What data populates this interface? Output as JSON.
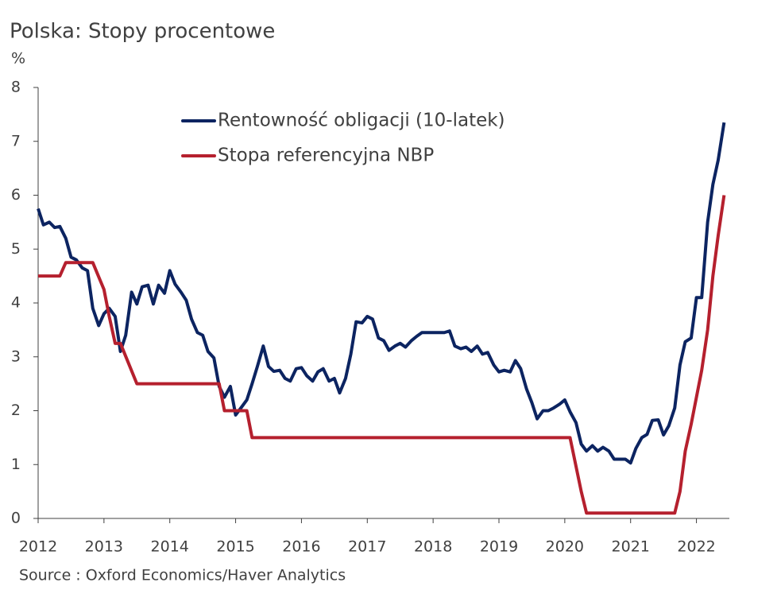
{
  "chart_data": {
    "type": "line",
    "title": "Polska: Stopy procentowe",
    "y_label": "%",
    "source": "Source : Oxford Economics/Haver Analytics",
    "xlim": [
      2012,
      2022.5
    ],
    "xticks": [
      2012,
      2013,
      2014,
      2015,
      2016,
      2017,
      2018,
      2019,
      2020,
      2021,
      2022
    ],
    "ylim": [
      0,
      8
    ],
    "yticks": [
      0,
      1,
      2,
      3,
      4,
      5,
      6,
      7,
      8
    ],
    "legend": "top",
    "series": [
      {
        "name": "Rentowność obligacji (10-latek)",
        "color": "#0c2461",
        "x": [
          2012.0,
          2012.08,
          2012.17,
          2012.25,
          2012.33,
          2012.42,
          2012.5,
          2012.58,
          2012.67,
          2012.75,
          2012.83,
          2012.92,
          2013.0,
          2013.08,
          2013.17,
          2013.25,
          2013.33,
          2013.42,
          2013.5,
          2013.58,
          2013.67,
          2013.75,
          2013.83,
          2013.92,
          2014.0,
          2014.08,
          2014.17,
          2014.25,
          2014.33,
          2014.42,
          2014.5,
          2014.58,
          2014.67,
          2014.75,
          2014.83,
          2014.92,
          2015.0,
          2015.08,
          2015.17,
          2015.25,
          2015.33,
          2015.42,
          2015.5,
          2015.58,
          2015.67,
          2015.75,
          2015.83,
          2015.92,
          2016.0,
          2016.08,
          2016.17,
          2016.25,
          2016.33,
          2016.42,
          2016.5,
          2016.58,
          2016.67,
          2016.75,
          2016.83,
          2016.92,
          2017.0,
          2017.08,
          2017.17,
          2017.25,
          2017.33,
          2017.42,
          2017.5,
          2017.58,
          2017.67,
          2017.75,
          2017.83,
          2018.0,
          2018.17,
          2018.25,
          2018.33,
          2018.42,
          2018.5,
          2018.58,
          2018.67,
          2018.75,
          2018.83,
          2018.92,
          2019.0,
          2019.08,
          2019.17,
          2019.25,
          2019.33,
          2019.42,
          2019.5,
          2019.58,
          2019.67,
          2019.75,
          2019.83,
          2019.92,
          2020.0,
          2020.08,
          2020.17,
          2020.25,
          2020.33,
          2020.42,
          2020.5,
          2020.58,
          2020.67,
          2020.75,
          2020.92,
          2021.0,
          2021.08,
          2021.17,
          2021.25,
          2021.33,
          2021.42,
          2021.5,
          2021.58,
          2021.67,
          2021.75,
          2021.83,
          2021.92,
          2022.0,
          2022.08,
          2022.17,
          2022.25,
          2022.33,
          2022.42
        ],
        "values": [
          5.75,
          5.45,
          5.5,
          5.4,
          5.42,
          5.2,
          4.85,
          4.8,
          4.65,
          4.6,
          3.9,
          3.58,
          3.8,
          3.9,
          3.75,
          3.1,
          3.4,
          4.2,
          3.98,
          4.3,
          4.33,
          3.98,
          4.33,
          4.18,
          4.6,
          4.35,
          4.2,
          4.05,
          3.7,
          3.45,
          3.4,
          3.1,
          2.98,
          2.45,
          2.25,
          2.45,
          1.92,
          2.05,
          2.2,
          2.5,
          2.82,
          3.2,
          2.82,
          2.73,
          2.75,
          2.6,
          2.55,
          2.78,
          2.8,
          2.65,
          2.55,
          2.72,
          2.78,
          2.55,
          2.6,
          2.33,
          2.6,
          3.05,
          3.65,
          3.63,
          3.75,
          3.7,
          3.35,
          3.3,
          3.12,
          3.2,
          3.25,
          3.18,
          3.3,
          3.38,
          3.45,
          3.45,
          3.45,
          3.48,
          3.2,
          3.15,
          3.18,
          3.1,
          3.2,
          3.05,
          3.08,
          2.85,
          2.72,
          2.75,
          2.72,
          2.93,
          2.78,
          2.4,
          2.15,
          1.85,
          2.0,
          2.0,
          2.05,
          2.12,
          2.2,
          1.98,
          1.78,
          1.38,
          1.25,
          1.35,
          1.25,
          1.32,
          1.25,
          1.1,
          1.1,
          1.03,
          1.3,
          1.5,
          1.56,
          1.82,
          1.83,
          1.55,
          1.72,
          2.05,
          2.85,
          3.28,
          3.35,
          4.1,
          4.1,
          5.5,
          6.2,
          6.65,
          7.35
        ]
      },
      {
        "name": "Stopa referencyjna NBP",
        "color": "#b5202e",
        "x": [
          2012.0,
          2012.33,
          2012.42,
          2012.83,
          2013.0,
          2013.08,
          2013.17,
          2013.25,
          2013.5,
          2014.75,
          2014.83,
          2015.17,
          2015.25,
          2020.08,
          2020.25,
          2020.33,
          2021.67,
          2021.75,
          2021.83,
          2021.92,
          2022.0,
          2022.08,
          2022.17,
          2022.25,
          2022.33,
          2022.42
        ],
        "values": [
          4.5,
          4.5,
          4.75,
          4.75,
          4.25,
          3.75,
          3.25,
          3.25,
          2.5,
          2.5,
          2.0,
          2.0,
          1.5,
          1.5,
          0.5,
          0.1,
          0.1,
          0.5,
          1.25,
          1.75,
          2.25,
          2.75,
          3.5,
          4.5,
          5.25,
          6.0
        ]
      }
    ]
  }
}
